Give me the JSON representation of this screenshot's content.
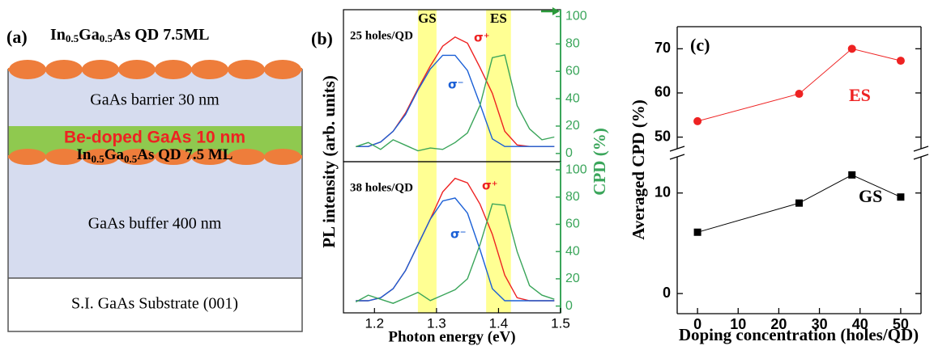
{
  "diagram": {
    "label": "(a)",
    "top_qd": {
      "parts": [
        "In",
        "0.5",
        "Ga",
        "0.5",
        "As QD 7.5ML"
      ]
    },
    "layers": [
      {
        "text": "GaAs barrier 30 nm"
      },
      {
        "text": "Be-doped GaAs 10 nm"
      },
      {
        "parts": [
          "In",
          "0.5",
          "Ga",
          "0.5",
          "As QD 7.5 ML"
        ]
      },
      {
        "text": "GaAs buffer 400 nm"
      },
      {
        "text": "S.I. GaAs Substrate (001)"
      }
    ]
  },
  "chart_data": [
    {
      "type": "line",
      "panel_label": "(b)",
      "annotation": "25 holes/QD",
      "x": [
        1.17,
        1.19,
        1.21,
        1.23,
        1.25,
        1.27,
        1.29,
        1.31,
        1.33,
        1.35,
        1.37,
        1.39,
        1.41,
        1.43,
        1.45,
        1.47,
        1.49
      ],
      "xlim": [
        1.15,
        1.5
      ],
      "ylim": [
        0,
        1
      ],
      "y2lim": [
        -6,
        105
      ],
      "y2ticks": [
        0,
        20,
        40,
        60,
        80,
        100
      ],
      "bands": [
        {
          "label": "GS",
          "range": [
            1.27,
            1.3
          ]
        },
        {
          "label": "ES",
          "range": [
            1.38,
            1.42
          ]
        }
      ],
      "series": [
        {
          "name": "σ⁺",
          "color": "#ee2222",
          "values": [
            0.1,
            0.1,
            0.13,
            0.2,
            0.32,
            0.48,
            0.63,
            0.76,
            0.82,
            0.78,
            0.62,
            0.45,
            0.2,
            0.11,
            0.1,
            0.1,
            0.1
          ]
        },
        {
          "name": "σ⁻",
          "color": "#1a5fd6",
          "values": [
            0.1,
            0.1,
            0.13,
            0.2,
            0.31,
            0.47,
            0.61,
            0.7,
            0.7,
            0.6,
            0.38,
            0.15,
            0.1,
            0.1,
            0.1,
            0.1,
            0.1
          ]
        },
        {
          "color": "#3aa55a",
          "axis": "y2",
          "values": [
            5,
            8,
            3,
            10,
            6,
            2,
            4,
            3,
            8,
            15,
            35,
            70,
            72,
            35,
            18,
            10,
            12
          ]
        }
      ]
    },
    {
      "type": "line",
      "annotation": "38 holes/QD",
      "x": [
        1.17,
        1.19,
        1.21,
        1.23,
        1.25,
        1.27,
        1.29,
        1.31,
        1.33,
        1.35,
        1.37,
        1.39,
        1.41,
        1.43,
        1.45,
        1.47,
        1.49
      ],
      "xlim": [
        1.15,
        1.5
      ],
      "xticks": [
        1.2,
        1.3,
        1.4,
        1.5
      ],
      "ylim": [
        0,
        1
      ],
      "y2lim": [
        -5,
        106
      ],
      "y2ticks": [
        0,
        20,
        40,
        60,
        80,
        100
      ],
      "xlabel": "Photon energy (eV)",
      "ylabel": "PL intensity (arb. units)",
      "y2label": "CPD (%)",
      "series": [
        {
          "name": "σ⁺",
          "color": "#ee2222",
          "values": [
            0.08,
            0.08,
            0.1,
            0.16,
            0.28,
            0.45,
            0.62,
            0.8,
            0.89,
            0.86,
            0.72,
            0.52,
            0.25,
            0.1,
            0.08,
            0.08,
            0.08
          ]
        },
        {
          "name": "σ⁻",
          "color": "#1a5fd6",
          "values": [
            0.08,
            0.08,
            0.1,
            0.16,
            0.28,
            0.45,
            0.62,
            0.74,
            0.76,
            0.66,
            0.42,
            0.16,
            0.08,
            0.08,
            0.08,
            0.08,
            0.08
          ]
        },
        {
          "color": "#3aa55a",
          "axis": "y2",
          "values": [
            3,
            8,
            5,
            2,
            6,
            10,
            4,
            8,
            12,
            20,
            45,
            75,
            74,
            40,
            15,
            8,
            5
          ]
        }
      ]
    },
    {
      "type": "line",
      "panel_label": "(c)",
      "x": [
        0,
        25,
        38,
        50
      ],
      "xlim": [
        -5,
        55
      ],
      "xticks": [
        0,
        10,
        20,
        30,
        40,
        50
      ],
      "ylim": [
        -2,
        14
      ],
      "yticks": [
        0,
        10
      ],
      "ylim_upper": [
        47,
        75
      ],
      "yticks_upper": [
        50,
        60,
        70
      ],
      "xlabel": "Doping concentration (holes/QD)",
      "ylabel": "Averaged CPD (%)",
      "series": [
        {
          "name": "GS",
          "color": "#000000",
          "marker": "square",
          "values": [
            6.1,
            9.0,
            11.8,
            9.6
          ]
        },
        {
          "name": "ES",
          "color": "#ee2222",
          "marker": "circle",
          "axis": "upper",
          "values": [
            53.6,
            59.8,
            70,
            67.3
          ]
        }
      ]
    }
  ]
}
